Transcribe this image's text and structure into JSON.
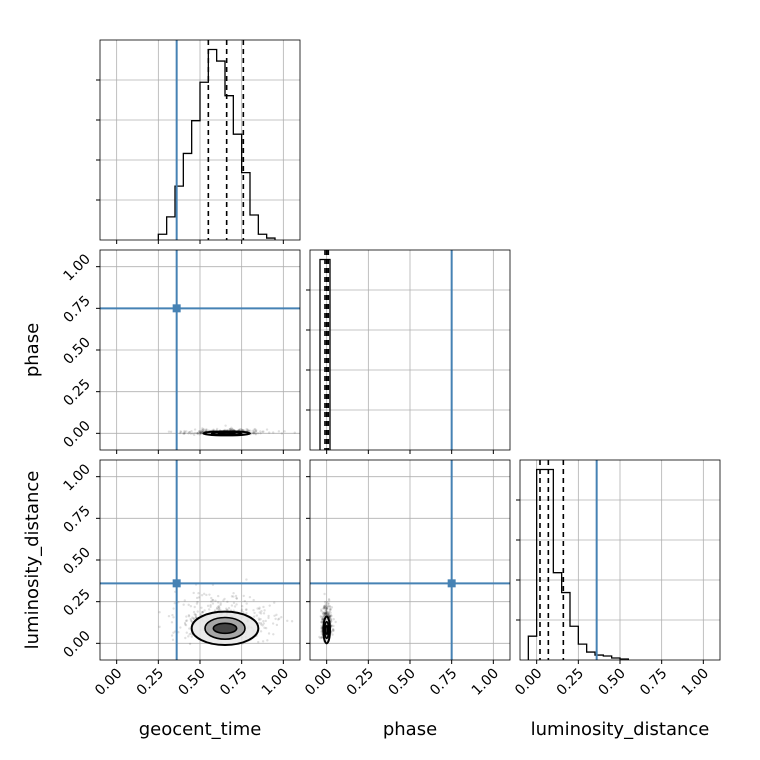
{
  "chart_data": {
    "type": "corner",
    "parameters": [
      "geocent_time",
      "phase",
      "luminosity_distance"
    ],
    "truths": {
      "geocent_time": 0.36,
      "phase": 0.75,
      "luminosity_distance": 0.36
    },
    "truth_color": "#4682b4",
    "axis_range": [
      -0.1,
      1.1
    ],
    "tick_values": [
      0.0,
      0.25,
      0.5,
      0.75,
      1.0
    ],
    "tick_labels": [
      "0.00",
      "0.25",
      "0.50",
      "0.75",
      "1.00"
    ],
    "grid": true,
    "histograms": [
      {
        "parameter": "geocent_time",
        "bin_edges": [
          0.25,
          0.3,
          0.35,
          0.4,
          0.45,
          0.5,
          0.55,
          0.6,
          0.65,
          0.7,
          0.75,
          0.8,
          0.85,
          0.9,
          0.95
        ],
        "counts": [
          0.03,
          0.12,
          0.28,
          0.45,
          0.62,
          0.82,
          0.99,
          0.93,
          0.75,
          0.55,
          0.35,
          0.13,
          0.03,
          0.01
        ],
        "quantiles": [
          0.55,
          0.66,
          0.76
        ]
      },
      {
        "parameter": "phase",
        "bin_edges": [
          -0.04,
          0.0,
          0.02
        ],
        "counts": [
          0.97,
          0.97
        ],
        "quantiles": [
          -0.01,
          0.0,
          0.01
        ]
      },
      {
        "parameter": "luminosity_distance",
        "bin_edges": [
          -0.05,
          0.0,
          0.05,
          0.1,
          0.15,
          0.2,
          0.25,
          0.3,
          0.35,
          0.4,
          0.45,
          0.5,
          0.55
        ],
        "counts": [
          0.12,
          0.96,
          0.96,
          0.44,
          0.34,
          0.17,
          0.08,
          0.04,
          0.025,
          0.02,
          0.01,
          0.005
        ],
        "quantiles": [
          0.02,
          0.07,
          0.16
        ]
      }
    ],
    "contours_2d": [
      {
        "x": "geocent_time",
        "y": "phase",
        "center": [
          0.66,
          0.0
        ],
        "levels": [
          {
            "rx": 0.14,
            "ry": 0.012
          },
          {
            "rx": 0.09,
            "ry": 0.008
          },
          {
            "rx": 0.05,
            "ry": 0.005
          }
        ]
      },
      {
        "x": "geocent_time",
        "y": "luminosity_distance",
        "center": [
          0.65,
          0.09
        ],
        "levels": [
          {
            "rx": 0.2,
            "ry": 0.1
          },
          {
            "rx": 0.12,
            "ry": 0.065
          },
          {
            "rx": 0.07,
            "ry": 0.03
          }
        ]
      },
      {
        "x": "phase",
        "y": "luminosity_distance",
        "center": [
          0.0,
          0.08
        ],
        "levels": [
          {
            "rx": 0.02,
            "ry": 0.08
          },
          {
            "rx": 0.012,
            "ry": 0.05
          },
          {
            "rx": 0.007,
            "ry": 0.025
          }
        ]
      }
    ]
  }
}
